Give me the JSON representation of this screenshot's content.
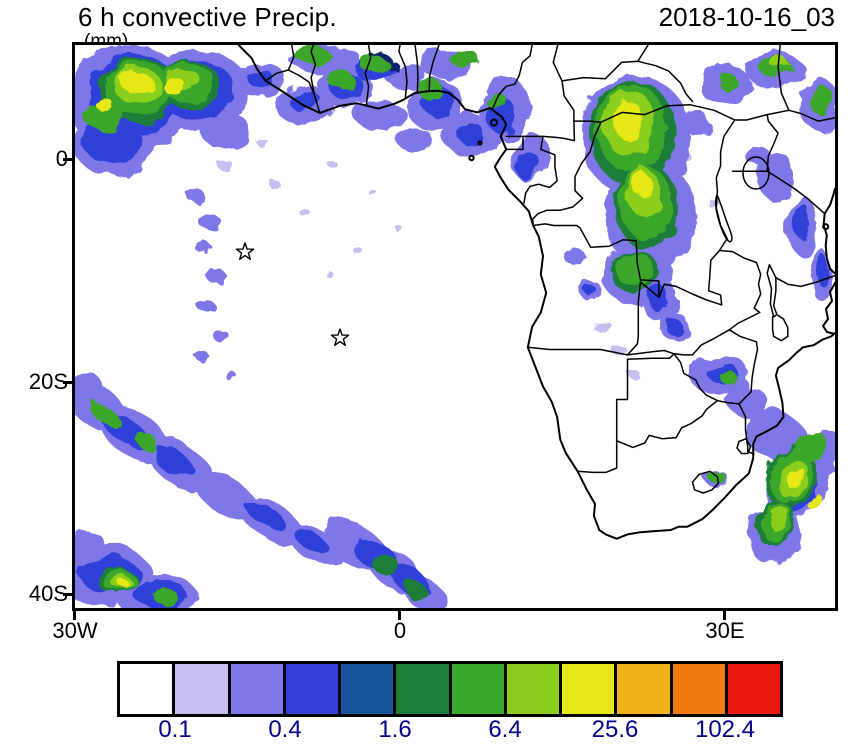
{
  "header": {
    "title": "6 h convective Precip.",
    "units": "(mm)",
    "datetime": "2018-10-16_03"
  },
  "map": {
    "y_axis_labels": [
      "0",
      "20S",
      "40S"
    ],
    "x_axis_labels": [
      "30W",
      "0",
      "30E"
    ],
    "marker_symbol": "star",
    "marker_count": 2
  },
  "colorbar": {
    "colors": [
      "#ffffff",
      "#c8bff0",
      "#7f76e8",
      "#2f3fd8",
      "#17549c",
      "#1d7e38",
      "#3aa62c",
      "#8cce1e",
      "#e6e817",
      "#f0b419",
      "#f07c11",
      "#e81a10"
    ],
    "tick_labels": [
      "0.1",
      "0.4",
      "1.6",
      "6.4",
      "25.6",
      "102.4"
    ],
    "label_color": "#00008b"
  }
}
